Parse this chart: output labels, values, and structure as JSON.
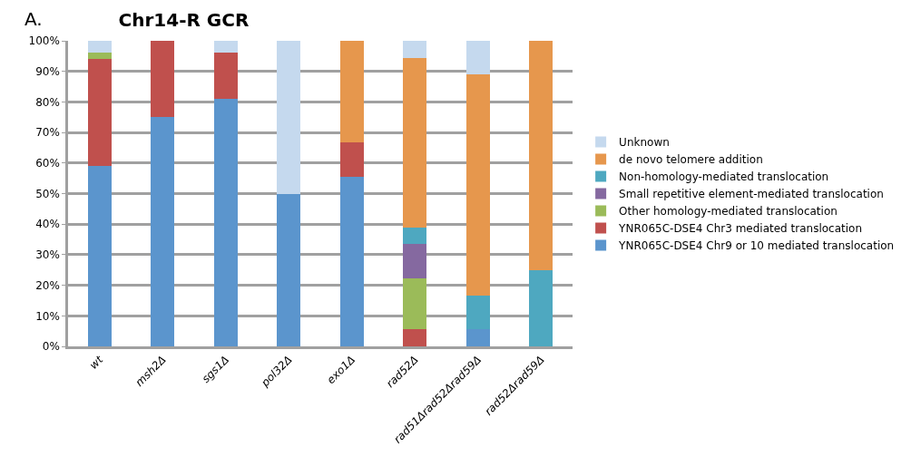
{
  "chart_data": {
    "type": "bar",
    "title": "Chr14-R GCR",
    "annotations": [
      "A."
    ],
    "stacked": true,
    "categories": [
      "wt",
      "msh2Δ",
      "sgs1Δ",
      "pol32Δ",
      "exo1Δ",
      "rad52Δ",
      "rad51Δrad52Δrad59Δ",
      "rad52Δrad59Δ"
    ],
    "series": [
      {
        "name": "YNR065C-DSE4 Chr9 or 10 mediated translocation",
        "color": "#5b95cd",
        "values": [
          59,
          75,
          81,
          50,
          55.6,
          0,
          5.6,
          0
        ]
      },
      {
        "name": "YNR065C-DSE4 Chr3 mediated translocation",
        "color": "#c0504d",
        "values": [
          35,
          25,
          15,
          0,
          11.1,
          5.6,
          0,
          0
        ]
      },
      {
        "name": "Other homology-mediated translocation",
        "color": "#9bbb59",
        "values": [
          2,
          0,
          0,
          0,
          0,
          16.7,
          0,
          0
        ]
      },
      {
        "name": "Small repetitive element-mediated translocation",
        "color": "#8569a0",
        "values": [
          0,
          0,
          0,
          0,
          0,
          11.1,
          0,
          0
        ]
      },
      {
        "name": "Non-homology-mediated translocation",
        "color": "#4ea8c0",
        "values": [
          0,
          0,
          0,
          0,
          0,
          5.5,
          11.1,
          25
        ]
      },
      {
        "name": "de novo telomere addition",
        "color": "#e6974d",
        "values": [
          0,
          0,
          0,
          0,
          33.3,
          55.6,
          72.2,
          75
        ]
      },
      {
        "name": "Unknown",
        "color": "#c5d9ee",
        "values": [
          4,
          0,
          4,
          50,
          0,
          5.5,
          11.1,
          0
        ]
      }
    ],
    "ylim": [
      0,
      100
    ],
    "yticks": [
      {
        "value": 0,
        "label": "0%"
      },
      {
        "value": 10,
        "label": "10%"
      },
      {
        "value": 20,
        "label": "20%"
      },
      {
        "value": 30,
        "label": "30%"
      },
      {
        "value": 40,
        "label": "40%"
      },
      {
        "value": 50,
        "label": "50%"
      },
      {
        "value": 60,
        "label": "60%"
      },
      {
        "value": 70,
        "label": "70%"
      },
      {
        "value": 80,
        "label": "80%"
      },
      {
        "value": 90,
        "label": "90%"
      },
      {
        "value": 100,
        "label": "100%"
      }
    ],
    "grid": "y",
    "legend": "right"
  }
}
